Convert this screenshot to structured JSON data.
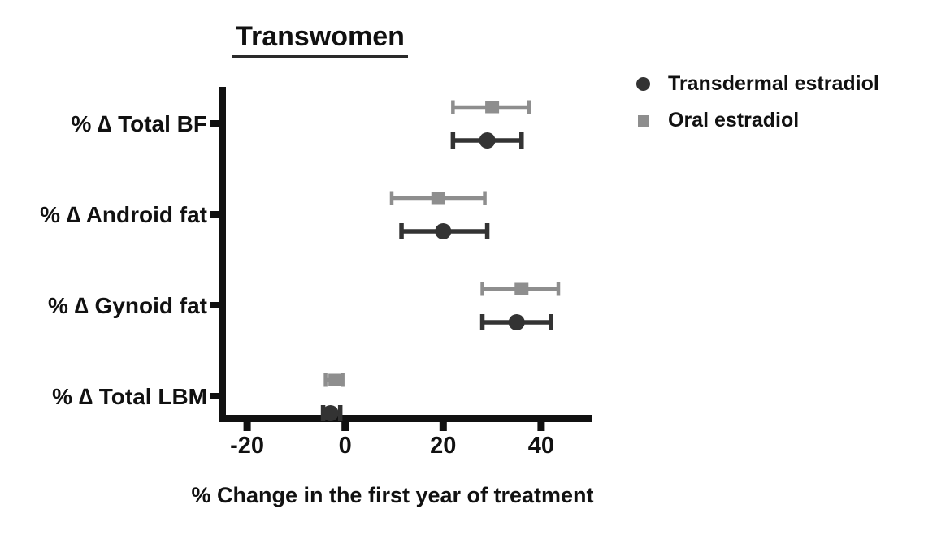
{
  "chart_data": {
    "type": "scatter",
    "subtype": "dot-plot-with-error-bars",
    "title": "Transwomen",
    "xlabel": "% Change in the first year of treatment",
    "ylabel": "",
    "xlim": [
      -26,
      50
    ],
    "x_ticks": [
      -20,
      0,
      20,
      40
    ],
    "grid": false,
    "legend_position": "top-right",
    "categories": [
      "% ∆ Total BF",
      "% ∆ Android fat",
      "% ∆ Gynoid fat",
      "% ∆ Total LBM"
    ],
    "series": [
      {
        "name": "Transdermal estradiol",
        "marker": "circle",
        "color": "#333333",
        "values": [
          29,
          20,
          35,
          -3
        ],
        "ci_low": [
          22,
          11.5,
          28,
          -4.5
        ],
        "ci_high": [
          36,
          29,
          42,
          -1
        ]
      },
      {
        "name": "Oral estradiol",
        "marker": "square",
        "color": "#8e8e8e",
        "values": [
          30,
          19,
          36,
          -2
        ],
        "ci_low": [
          22,
          9.5,
          28,
          -4
        ],
        "ci_high": [
          37.5,
          28.5,
          43.5,
          -0.5
        ]
      }
    ],
    "axis_color": "#111111"
  }
}
